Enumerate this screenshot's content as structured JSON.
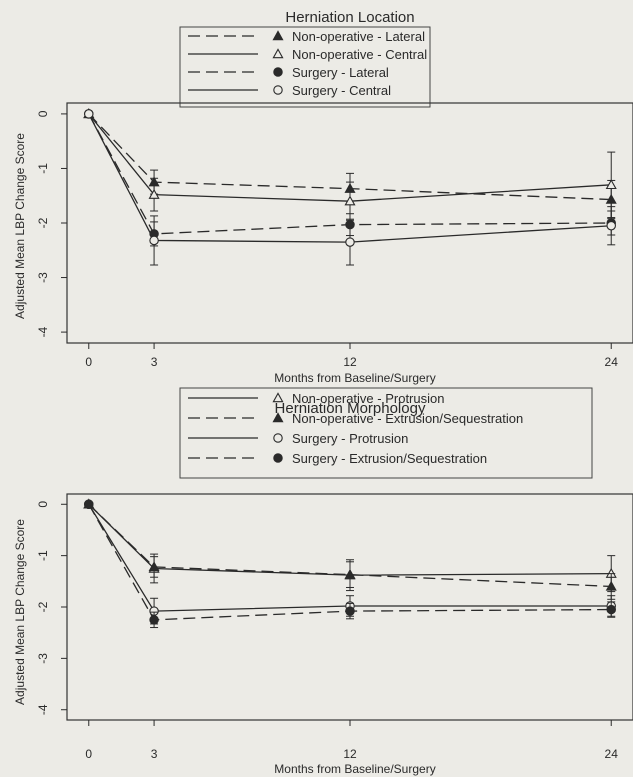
{
  "chart_data": [
    {
      "type": "line",
      "title": "Herniation Location",
      "xlabel": "Months from Baseline/Surgery",
      "ylabel": "Adjusted Mean LBP Change Score",
      "x": [
        0,
        3,
        12,
        24
      ],
      "xlim": [
        -1,
        25
      ],
      "ylim": [
        -4.2,
        0.2
      ],
      "x_ticks": [
        "0",
        "3",
        "12",
        "24"
      ],
      "y_ticks": [
        "0",
        "-1",
        "-2",
        "-3",
        "-4"
      ],
      "legend_position": "top-center",
      "grid": false,
      "series": [
        {
          "name": "Non-operative - Lateral",
          "values": [
            0,
            -1.25,
            -1.37,
            -1.57
          ],
          "error": [
            0,
            0.22,
            0.28,
            0.35
          ],
          "marker": "filled-triangle",
          "line": "dashed"
        },
        {
          "name": "Non-operative - Central",
          "values": [
            0,
            -1.48,
            -1.6,
            -1.3
          ],
          "error": [
            0,
            0.3,
            0.35,
            0.6
          ],
          "marker": "open-triangle",
          "line": "solid"
        },
        {
          "name": "Surgery - Lateral",
          "values": [
            0,
            -2.2,
            -2.03,
            -2.0
          ],
          "error": [
            0,
            0.22,
            0.2,
            0.22
          ],
          "marker": "filled-circle",
          "line": "dashed"
        },
        {
          "name": "Surgery - Central",
          "values": [
            0,
            -2.32,
            -2.35,
            -2.05
          ],
          "error": [
            0,
            0.45,
            0.42,
            0.35
          ],
          "marker": "open-circle",
          "line": "solid"
        }
      ]
    },
    {
      "type": "line",
      "title": "Herniation Morphology",
      "xlabel": "Months from Baseline/Surgery",
      "ylabel": "Adjusted Mean LBP Change Score",
      "x": [
        0,
        3,
        12,
        24
      ],
      "xlim": [
        -1,
        25
      ],
      "ylim": [
        -4.2,
        0.2
      ],
      "x_ticks": [
        "0",
        "3",
        "12",
        "24"
      ],
      "y_ticks": [
        "0",
        "-1",
        "-2",
        "-3",
        "-4"
      ],
      "legend_position": "top-center",
      "grid": false,
      "series": [
        {
          "name": "Non-operative - Protrusion",
          "values": [
            0,
            -1.25,
            -1.38,
            -1.35
          ],
          "error": [
            0,
            0.28,
            0.3,
            0.35
          ],
          "marker": "open-triangle",
          "line": "solid"
        },
        {
          "name": "Non-operative - Extrusion/Sequestration",
          "values": [
            0,
            -1.22,
            -1.37,
            -1.6
          ],
          "error": [
            0,
            0.2,
            0.25,
            0.25
          ],
          "marker": "filled-triangle",
          "line": "dashed"
        },
        {
          "name": "Surgery - Protrusion",
          "values": [
            0,
            -2.08,
            -1.98,
            -1.98
          ],
          "error": [
            0,
            0.25,
            0.2,
            0.2
          ],
          "marker": "open-circle",
          "line": "solid"
        },
        {
          "name": "Surgery - Extrusion/Sequestration",
          "values": [
            0,
            -2.25,
            -2.08,
            -2.05
          ],
          "error": [
            0,
            0.15,
            0.15,
            0.15
          ],
          "marker": "filled-circle",
          "line": "dashed"
        }
      ]
    }
  ]
}
